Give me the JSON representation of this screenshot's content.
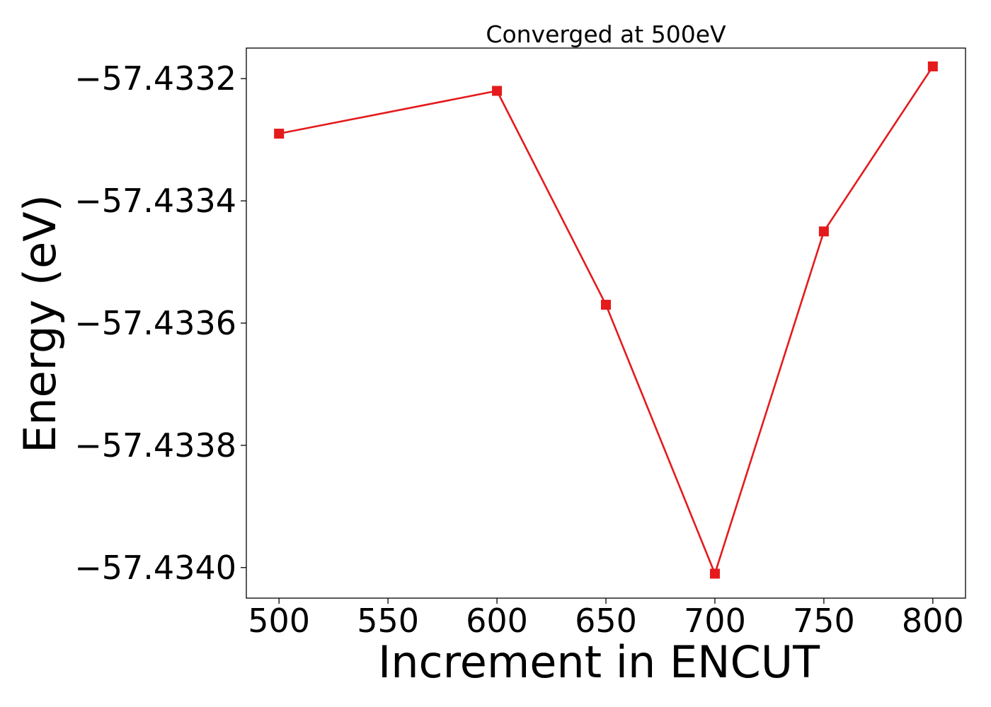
{
  "chart_data": {
    "type": "line",
    "title": "Converged at 500eV",
    "xlabel": "Increment in ENCUT",
    "ylabel": "Energy (eV)",
    "xlim": [
      485,
      815
    ],
    "ylim": [
      -57.43405,
      -57.43315
    ],
    "xticks": [
      500,
      550,
      600,
      650,
      700,
      750,
      800
    ],
    "xtick_labels": [
      "500",
      "550",
      "600",
      "650",
      "700",
      "750",
      "800"
    ],
    "yticks": [
      -57.4332,
      -57.4334,
      -57.4336,
      -57.4338,
      -57.434
    ],
    "ytick_labels": [
      "−57.4332",
      "−57.4334",
      "−57.4336",
      "−57.4338",
      "−57.4340"
    ],
    "grid": false,
    "legend": false,
    "series": [
      {
        "x": [
          500,
          600,
          650,
          700,
          750,
          800
        ],
        "values": [
          -57.43329,
          -57.43322,
          -57.43357,
          -57.43401,
          -57.43345,
          -57.43318
        ],
        "color": "#e41a1c",
        "marker": "square"
      }
    ]
  }
}
